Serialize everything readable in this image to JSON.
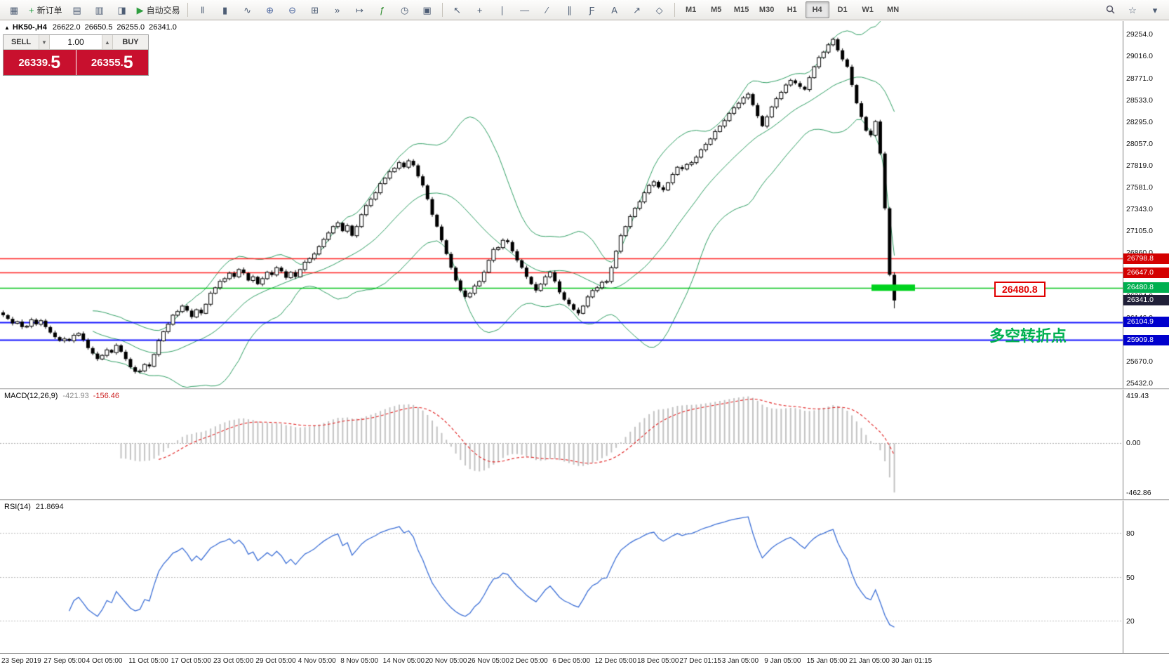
{
  "accent_colors": {
    "red_line": "#ff2020",
    "red_badge": "#d40000",
    "green_line": "#00c418",
    "green_badge": "#00b050",
    "green_highlight": "#00d21e",
    "blue_line": "#1414ff",
    "blue_badge": "#0000cd",
    "last_price_badge": "#202038",
    "bollinger": "#2f9e63",
    "macd_signal": "#e02020",
    "macd_histogram": "#c2c2c2",
    "rsi_line": "#3c6fd6",
    "trade_red": "#c8102e",
    "annotation_green": "#00b050"
  },
  "toolbar": {
    "groups": [
      {
        "name": "file",
        "items": [
          {
            "id": "terminal",
            "glyph": "▦"
          },
          {
            "id": "new-order",
            "glyph": "+",
            "glyph_color": "#1f9d3f",
            "label": "新订单"
          },
          {
            "id": "chart-profiles",
            "glyph": "▤"
          },
          {
            "id": "market-watch",
            "glyph": "▥"
          },
          {
            "id": "navigator",
            "glyph": "◨"
          },
          {
            "id": "autotrading",
            "glyph": "▶",
            "glyph_color": "#2e9e3f",
            "label": "自动交易"
          }
        ]
      },
      {
        "name": "chart-controls",
        "items": [
          {
            "id": "bar-chart",
            "glyph": "ǁ"
          },
          {
            "id": "candlestick-chart",
            "glyph": "▮"
          },
          {
            "id": "line-chart",
            "glyph": "∿"
          },
          {
            "id": "zoom-in",
            "glyph": "⊕",
            "glyph_color": "#44609c"
          },
          {
            "id": "zoom-out",
            "glyph": "⊖",
            "glyph_color": "#44609c"
          },
          {
            "id": "tile-windows",
            "glyph": "⊞"
          },
          {
            "id": "auto-scroll",
            "glyph": "»"
          },
          {
            "id": "chart-shift",
            "glyph": "↦"
          },
          {
            "id": "indicators",
            "glyph": "ƒ",
            "glyph_color": "#2e8b2e"
          },
          {
            "id": "periods",
            "glyph": "◷"
          },
          {
            "id": "templates",
            "glyph": "▣"
          }
        ]
      },
      {
        "name": "drawing-tools",
        "items": [
          {
            "id": "cursor",
            "glyph": "↖"
          },
          {
            "id": "crosshair",
            "glyph": "+"
          },
          {
            "id": "vertical-line",
            "glyph": "∣"
          },
          {
            "id": "horizontal-line",
            "glyph": "―"
          },
          {
            "id": "trendline",
            "glyph": "∕"
          },
          {
            "id": "channel",
            "glyph": "∥"
          },
          {
            "id": "fibonacci",
            "glyph": "Ƒ"
          },
          {
            "id": "text",
            "glyph": "A"
          },
          {
            "id": "arrows",
            "glyph": "↗"
          },
          {
            "id": "shapes",
            "glyph": "◇"
          }
        ]
      },
      {
        "name": "timeframes",
        "items": [
          {
            "id": "timeframe-m1",
            "label": "M1"
          },
          {
            "id": "timeframe-m5",
            "label": "M5"
          },
          {
            "id": "timeframe-m15",
            "label": "M15"
          },
          {
            "id": "timeframe-m30",
            "label": "M30"
          },
          {
            "id": "timeframe-h1",
            "label": "H1"
          },
          {
            "id": "timeframe-h4",
            "label": "H4",
            "active": true
          },
          {
            "id": "timeframe-d1",
            "label": "D1"
          },
          {
            "id": "timeframe-w1",
            "label": "W1"
          },
          {
            "id": "timeframe-mn",
            "label": "MN"
          }
        ]
      },
      {
        "name": "right",
        "items": [
          {
            "id": "search",
            "svg": "search"
          },
          {
            "id": "favorites",
            "glyph": "☆"
          },
          {
            "id": "panel-toggle",
            "glyph": "▾"
          }
        ]
      }
    ]
  },
  "symbol_info": {
    "collapse_glyph": "▲",
    "title": "HK50-,H4",
    "open": "26622.0",
    "high": "26650.5",
    "low": "26255.0",
    "close": "26341.0"
  },
  "trade_panel": {
    "sell_label": "SELL",
    "buy_label": "BUY",
    "volume": "1.00",
    "volume_down_glyph": "▼",
    "volume_up_glyph": "▲",
    "sell_price": "26339.5",
    "buy_price": "26355.5",
    "sell_price_base": "26339",
    "sell_price_big": "5",
    "buy_price_base": "26355",
    "buy_price_big": "5",
    "decimal_point": "."
  },
  "annotations": {
    "turning_point": "多空转折点",
    "price_callout": "26480.8"
  },
  "macd_header": {
    "label": "MACD(12,26,9)",
    "main": "-421.93",
    "signal": "-156.46"
  },
  "rsi_header": {
    "label": "RSI(14)",
    "value": "21.8694"
  },
  "chart_data": {
    "type": "candlestick+indicators",
    "symbol": "HK50-",
    "timeframe": "H4",
    "bollinger": {
      "period": 20,
      "deviation": 2
    },
    "macd": {
      "fast": 12,
      "slow": 26,
      "signal": 9
    },
    "rsi": {
      "period": 14
    },
    "last_bar": {
      "open": 26622.0,
      "high": 26650.5,
      "low": 26255.0,
      "close": 26341.0
    },
    "closes": [
      26180,
      26140,
      26090,
      26110,
      26050,
      26060,
      26130,
      26080,
      26120,
      26050,
      25990,
      25940,
      25900,
      25920,
      25900,
      25960,
      25980,
      25910,
      25820,
      25760,
      25700,
      25740,
      25800,
      25770,
      25850,
      25780,
      25700,
      25610,
      25560,
      25570,
      25640,
      25620,
      25750,
      25900,
      26000,
      26080,
      26180,
      26220,
      26280,
      26230,
      26160,
      26240,
      26200,
      26300,
      26420,
      26480,
      26550,
      26580,
      26640,
      26600,
      26680,
      26640,
      26560,
      26600,
      26520,
      26580,
      26650,
      26620,
      26700,
      26660,
      26590,
      26650,
      26600,
      26680,
      26760,
      26800,
      26850,
      26930,
      27010,
      27080,
      27150,
      27190,
      27100,
      27160,
      27050,
      27150,
      27280,
      27380,
      27450,
      27520,
      27620,
      27680,
      27750,
      27790,
      27850,
      27800,
      27870,
      27820,
      27700,
      27600,
      27450,
      27280,
      27150,
      27000,
      26850,
      26700,
      26560,
      26450,
      26380,
      26420,
      26500,
      26550,
      26650,
      26780,
      26900,
      26920,
      27000,
      26980,
      26880,
      26780,
      26700,
      26600,
      26520,
      26450,
      26520,
      26600,
      26650,
      26550,
      26430,
      26350,
      26300,
      26240,
      26200,
      26280,
      26380,
      26450,
      26480,
      26540,
      26550,
      26700,
      26880,
      27050,
      27150,
      27260,
      27350,
      27420,
      27520,
      27600,
      27640,
      27580,
      27550,
      27630,
      27720,
      27800,
      27780,
      27830,
      27850,
      27910,
      27990,
      28050,
      28110,
      28190,
      28250,
      28310,
      28390,
      28450,
      28500,
      28560,
      28600,
      28480,
      28360,
      28250,
      28350,
      28460,
      28550,
      28620,
      28700,
      28750,
      28720,
      28680,
      28650,
      28780,
      28900,
      29000,
      29060,
      29140,
      29200,
      29080,
      28980,
      28900,
      28700,
      28500,
      28350,
      28200,
      28150,
      28300,
      27950,
      27350,
      26622,
      26341
    ],
    "price_axis_ticks": [
      "29254.0",
      "29016.0",
      "28771.0",
      "28533.0",
      "28295.0",
      "28057.0",
      "27819.0",
      "27581.0",
      "27343.0",
      "27105.0",
      "26860.0",
      "26622.0",
      "26384.0",
      "26146.0",
      "25908.0",
      "25670.0",
      "25432.0"
    ],
    "levels": [
      {
        "label": "26798.8",
        "price": 26798.8,
        "kind": "resistance",
        "color": "red"
      },
      {
        "label": "26647.0",
        "price": 26647.0,
        "kind": "resistance",
        "color": "red"
      },
      {
        "label": "26480.8",
        "price": 26480.8,
        "kind": "pivot",
        "color": "green"
      },
      {
        "label": "26341.0",
        "price": 26341.0,
        "kind": "last-price",
        "color": "dark"
      },
      {
        "label": "26104.9",
        "price": 26104.9,
        "kind": "support",
        "color": "blue"
      },
      {
        "label": "25909.8",
        "price": 25909.8,
        "kind": "support",
        "color": "blue"
      }
    ],
    "highlight_band": {
      "price": 26480.8
    },
    "macd_axis": {
      "max": "419.43",
      "zero": "0.00",
      "min": "-462.86"
    },
    "rsi_levels": [
      "80",
      "50",
      "20"
    ],
    "time_axis": [
      "23 Sep 2019",
      "27 Sep 05:00",
      "4 Oct 05:00",
      "11 Oct 05:00",
      "17 Oct 05:00",
      "23 Oct 05:00",
      "29 Oct 05:00",
      "4 Nov 05:00",
      "8 Nov 05:00",
      "14 Nov 05:00",
      "20 Nov 05:00",
      "26 Nov 05:00",
      "2 Dec 05:00",
      "6 Dec 05:00",
      "12 Dec 05:00",
      "18 Dec 05:00",
      "27 Dec 01:15",
      "3 Jan 05:00",
      "9 Jan 05:00",
      "15 Jan 05:00",
      "21 Jan 05:00",
      "30 Jan 01:15"
    ]
  }
}
